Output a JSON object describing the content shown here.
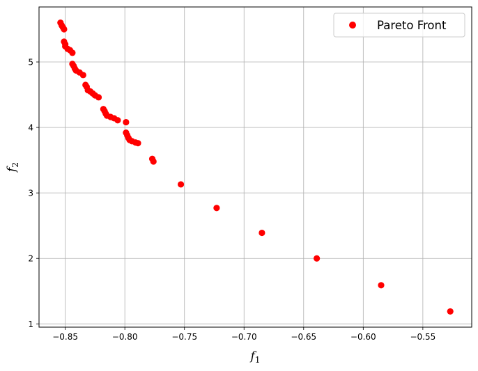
{
  "chart_data": {
    "type": "scatter",
    "title": "",
    "xlabel": "f",
    "xlabel_sub": "1",
    "ylabel": "f",
    "ylabel_sub": "2",
    "xlim": [
      -0.872,
      -0.509
    ],
    "ylim": [
      0.95,
      5.84
    ],
    "xticks": [
      -0.85,
      -0.8,
      -0.75,
      -0.7,
      -0.65,
      -0.6,
      -0.55
    ],
    "xtick_labels": [
      "−0.85",
      "−0.80",
      "−0.75",
      "−0.70",
      "−0.65",
      "−0.60",
      "−0.55"
    ],
    "yticks": [
      1,
      2,
      3,
      4,
      5
    ],
    "ytick_labels": [
      "1",
      "2",
      "3",
      "4",
      "5"
    ],
    "grid": true,
    "legend_position": "top-right",
    "marker_color": "#ff0000",
    "series": [
      {
        "name": "Pareto Front",
        "x": [
          -0.854,
          -0.853,
          -0.852,
          -0.851,
          -0.851,
          -0.85,
          -0.85,
          -0.848,
          -0.846,
          -0.844,
          -0.844,
          -0.843,
          -0.842,
          -0.841,
          -0.838,
          -0.835,
          -0.833,
          -0.832,
          -0.831,
          -0.829,
          -0.827,
          -0.825,
          -0.822,
          -0.818,
          -0.817,
          -0.816,
          -0.815,
          -0.812,
          -0.809,
          -0.806,
          -0.799,
          -0.799,
          -0.798,
          -0.797,
          -0.796,
          -0.794,
          -0.791,
          -0.789,
          -0.777,
          -0.776,
          -0.753,
          -0.723,
          -0.685,
          -0.639,
          -0.585,
          -0.527
        ],
        "y": [
          5.6,
          5.56,
          5.53,
          5.5,
          5.31,
          5.27,
          5.24,
          5.2,
          5.18,
          5.14,
          4.97,
          4.94,
          4.9,
          4.87,
          4.84,
          4.8,
          4.65,
          4.62,
          4.57,
          4.55,
          4.52,
          4.49,
          4.46,
          4.28,
          4.25,
          4.21,
          4.18,
          4.16,
          4.14,
          4.11,
          4.08,
          3.92,
          3.88,
          3.84,
          3.81,
          3.79,
          3.77,
          3.76,
          3.52,
          3.48,
          3.13,
          2.77,
          2.39,
          2.0,
          1.59,
          1.19
        ]
      }
    ]
  }
}
